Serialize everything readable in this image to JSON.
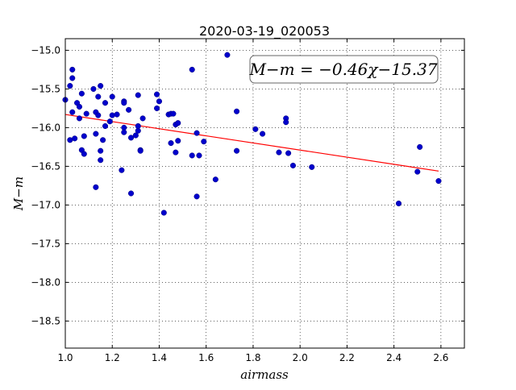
{
  "chart_data": {
    "type": "scatter",
    "title": "2020-03-19_020053",
    "xlabel": "airmass",
    "ylabel": "M−m",
    "xlim": [
      1.0,
      2.7
    ],
    "ylim": [
      -18.85,
      -14.85
    ],
    "y_inverted": true,
    "grid": true,
    "grid_style": "dotted",
    "xticks": [
      1.0,
      1.2,
      1.4,
      1.6,
      1.8,
      2.0,
      2.2,
      2.4,
      2.6
    ],
    "xtick_labels": [
      "1.0",
      "1.2",
      "1.4",
      "1.6",
      "1.8",
      "2.0",
      "2.2",
      "2.4",
      "2.6"
    ],
    "yticks": [
      -15.0,
      -15.5,
      -16.0,
      -16.5,
      -17.0,
      -17.5,
      -18.0,
      -18.5
    ],
    "ytick_labels": [
      "−15.0",
      "−15.5",
      "−16.0",
      "−16.5",
      "−17.0",
      "−17.5",
      "−18.0",
      "−18.5"
    ],
    "annotation": "M−m = −0.46χ−15.37",
    "series": [
      {
        "kind": "points",
        "color": "#0000cc",
        "points": [
          [
            1.0,
            -15.64
          ],
          [
            1.02,
            -15.46
          ],
          [
            1.03,
            -15.36
          ],
          [
            1.03,
            -15.25
          ],
          [
            1.03,
            -15.8
          ],
          [
            1.02,
            -16.16
          ],
          [
            1.04,
            -16.14
          ],
          [
            1.05,
            -15.68
          ],
          [
            1.06,
            -15.73
          ],
          [
            1.06,
            -15.88
          ],
          [
            1.07,
            -15.56
          ],
          [
            1.07,
            -16.29
          ],
          [
            1.08,
            -16.34
          ],
          [
            1.08,
            -16.11
          ],
          [
            1.09,
            -15.82
          ],
          [
            1.12,
            -15.5
          ],
          [
            1.13,
            -15.8
          ],
          [
            1.13,
            -16.08
          ],
          [
            1.13,
            -16.77
          ],
          [
            1.14,
            -15.6
          ],
          [
            1.14,
            -15.84
          ],
          [
            1.15,
            -15.46
          ],
          [
            1.15,
            -16.3
          ],
          [
            1.15,
            -16.42
          ],
          [
            1.16,
            -16.16
          ],
          [
            1.17,
            -15.68
          ],
          [
            1.17,
            -15.98
          ],
          [
            1.19,
            -15.92
          ],
          [
            1.2,
            -15.84
          ],
          [
            1.2,
            -15.6
          ],
          [
            1.22,
            -15.83
          ],
          [
            1.24,
            -16.55
          ],
          [
            1.25,
            -15.66
          ],
          [
            1.25,
            -15.68
          ],
          [
            1.25,
            -16.0
          ],
          [
            1.25,
            -16.06
          ],
          [
            1.27,
            -15.77
          ],
          [
            1.28,
            -16.13
          ],
          [
            1.28,
            -16.85
          ],
          [
            1.3,
            -16.1
          ],
          [
            1.31,
            -16.04
          ],
          [
            1.31,
            -15.58
          ],
          [
            1.31,
            -15.98
          ],
          [
            1.32,
            -16.29
          ],
          [
            1.32,
            -16.3
          ],
          [
            1.33,
            -15.88
          ],
          [
            1.39,
            -15.57
          ],
          [
            1.39,
            -15.75
          ],
          [
            1.4,
            -15.66
          ],
          [
            1.42,
            -17.1
          ],
          [
            1.44,
            -15.83
          ],
          [
            1.45,
            -15.82
          ],
          [
            1.46,
            -15.82
          ],
          [
            1.45,
            -16.2
          ],
          [
            1.47,
            -15.96
          ],
          [
            1.47,
            -16.32
          ],
          [
            1.48,
            -16.17
          ],
          [
            1.48,
            -15.94
          ],
          [
            1.54,
            -15.25
          ],
          [
            1.54,
            -16.36
          ],
          [
            1.56,
            -16.07
          ],
          [
            1.56,
            -16.89
          ],
          [
            1.57,
            -16.36
          ],
          [
            1.59,
            -16.18
          ],
          [
            1.64,
            -16.67
          ],
          [
            1.69,
            -15.06
          ],
          [
            1.73,
            -15.79
          ],
          [
            1.73,
            -16.3
          ],
          [
            1.81,
            -16.02
          ],
          [
            1.84,
            -16.08
          ],
          [
            1.91,
            -16.32
          ],
          [
            1.94,
            -15.88
          ],
          [
            1.94,
            -15.93
          ],
          [
            1.95,
            -16.33
          ],
          [
            1.97,
            -16.49
          ],
          [
            2.05,
            -16.51
          ],
          [
            2.42,
            -16.98
          ],
          [
            2.5,
            -16.57
          ],
          [
            2.51,
            -16.25
          ],
          [
            2.59,
            -16.69
          ]
        ]
      },
      {
        "kind": "fit-line",
        "color": "#ff0000",
        "slope": -0.46,
        "intercept": -15.37,
        "x_range": [
          1.0,
          2.59
        ]
      }
    ]
  }
}
